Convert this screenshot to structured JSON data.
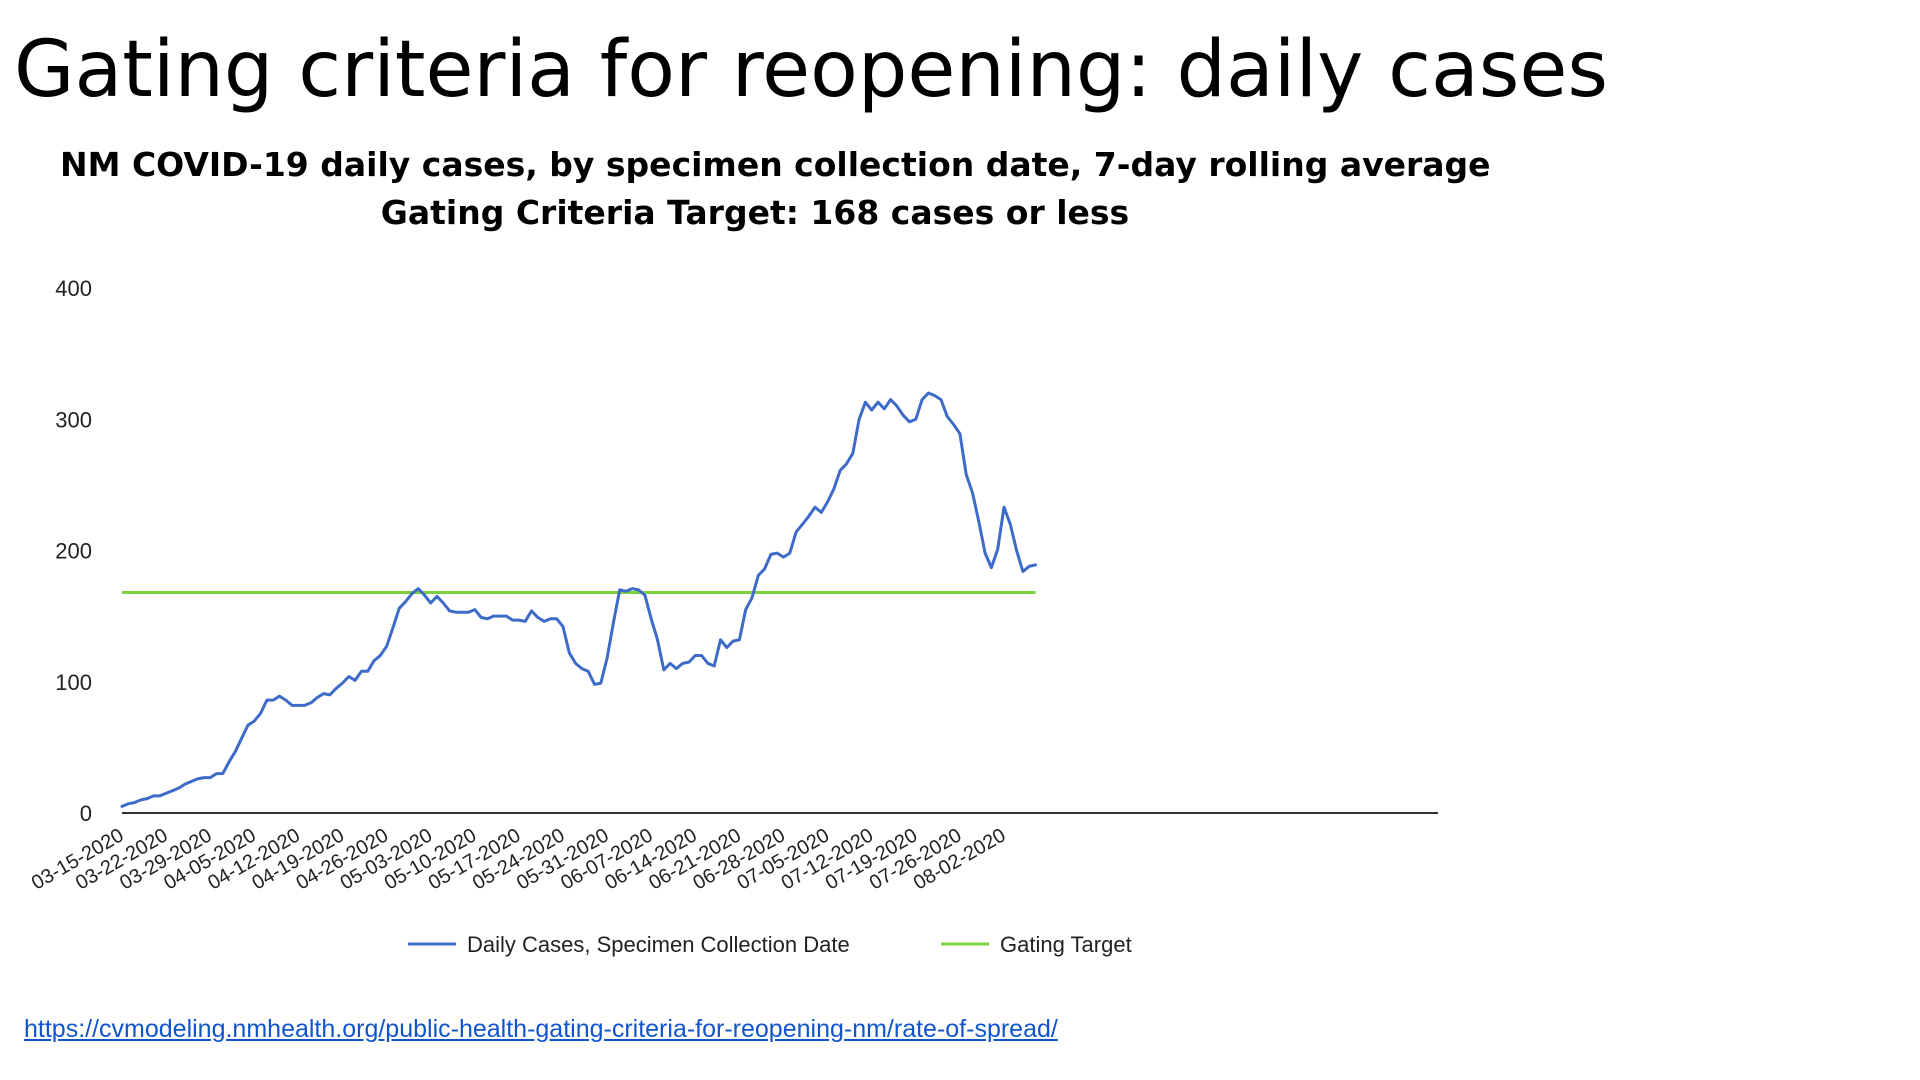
{
  "slide": {
    "title": "Gating criteria for reopening: daily cases",
    "source_url": "https://cvmodeling.nmhealth.org/public-health-gating-criteria-for-reopening-nm/rate-of-spread/"
  },
  "colors": {
    "daily_cases": "#3D6BC7",
    "gating_target": "#7ED03F",
    "axis": "#333333"
  },
  "chart_data": {
    "type": "line",
    "title": "NM COVID-19 daily cases, by specimen collection date, 7-day rolling average",
    "subtitle": "Gating Criteria Target: 168 cases or less",
    "xlabel": "",
    "ylabel": "",
    "ylim": [
      0,
      400
    ],
    "yticks": [
      "0",
      "100",
      "200",
      "300",
      "400"
    ],
    "grid": false,
    "legend_position": "bottom",
    "x_start": "03-15-2020",
    "xticks": [
      "03-15-2020",
      "03-22-2020",
      "03-29-2020",
      "04-05-2020",
      "04-12-2020",
      "04-19-2020",
      "04-26-2020",
      "05-03-2020",
      "05-10-2020",
      "05-17-2020",
      "05-24-2020",
      "05-31-2020",
      "06-07-2020",
      "06-14-2020",
      "06-21-2020",
      "06-28-2020",
      "07-05-2020",
      "07-12-2020",
      "07-19-2020",
      "07-26-2020",
      "08-02-2020"
    ],
    "series": [
      {
        "name": "Daily Cases, Specimen Collection Date",
        "values": [
          5,
          7,
          8,
          10,
          11,
          13,
          13,
          15,
          17,
          19,
          22,
          24,
          26,
          27,
          27,
          30,
          30,
          39,
          47,
          57,
          67,
          70,
          76,
          86,
          86,
          89,
          86,
          82,
          82,
          82,
          84,
          88,
          91,
          90,
          95,
          99,
          104,
          101,
          108,
          108,
          116,
          120,
          127,
          141,
          156,
          161,
          167,
          171,
          166,
          160,
          165,
          160,
          154,
          153,
          153,
          153,
          155,
          149,
          148,
          150,
          150,
          150,
          147,
          147,
          146,
          154,
          149,
          146,
          148,
          148,
          142,
          122,
          114,
          110,
          108,
          98,
          99,
          118,
          145,
          170,
          169,
          171,
          170,
          166,
          148,
          132,
          109,
          114,
          110,
          114,
          115,
          120,
          120,
          114,
          112,
          132,
          126,
          131,
          132,
          155,
          164,
          181,
          186,
          197,
          198,
          195,
          198,
          214,
          220,
          226,
          233,
          229,
          237,
          247,
          261,
          266,
          274,
          300,
          313,
          307,
          313,
          308,
          315,
          310,
          303,
          298,
          300,
          315,
          320,
          318,
          315,
          302,
          296,
          289,
          258,
          244,
          222,
          198,
          187,
          201,
          233,
          220,
          200,
          184,
          188,
          189
        ]
      },
      {
        "name": "Gating Target",
        "values": [
          168
        ]
      }
    ]
  }
}
